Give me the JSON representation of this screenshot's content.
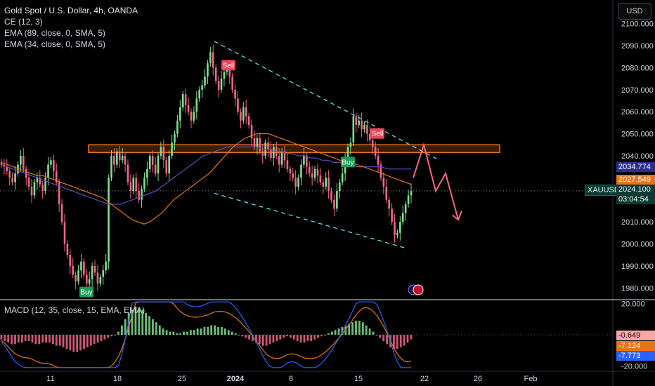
{
  "header": {
    "symbol_title": "Gold Spot / U.S. Dollar, 4h, OANDA",
    "indicators": [
      "CE (12, 3)",
      "EMA (89, close, 0, SMA, 5)",
      "EMA (34, close, 0, SMA, 5)"
    ],
    "currency_button": "USD"
  },
  "macd_legend": "MACD (12, 35, close, 15, EMA, EMA)",
  "price_badges": {
    "ema89": "2034.774",
    "ema34": "2027.549",
    "symbol": "XAUUSD",
    "last_price": "2024.100",
    "countdown": "03:04:54"
  },
  "macd_badges": [
    "-0.649",
    "-7.124",
    "-7.773"
  ],
  "signal_labels": {
    "buy": "Buy",
    "sell": "Sell"
  },
  "chart_data": {
    "type": "candlestick",
    "x_ticks": [
      "11",
      "18",
      "25",
      "2024",
      "8",
      "15",
      "22",
      "26",
      "Feb"
    ],
    "y_ticks": [
      1980,
      1990,
      2000,
      2010,
      2020,
      2030,
      2040,
      2050,
      2060,
      2070,
      2080,
      2090,
      2100
    ],
    "y_range": [
      1975,
      2105
    ],
    "macd_ticks": [
      20,
      -20
    ],
    "macd_range": [
      -22,
      22
    ],
    "last_price": 2024.1,
    "resistance_zone": [
      2041.5,
      2045
    ],
    "channel_upper": [
      [
        2092,
        2090
      ],
      [
        2045,
        2038
      ]
    ],
    "channel_lower": [
      [
        2041,
        2041
      ],
      [
        2002,
        1996
      ]
    ],
    "forecast_path": [
      2030,
      2045,
      2024,
      2032,
      2011
    ],
    "signals": [
      {
        "type": "Buy",
        "price": 1978
      },
      {
        "type": "Sell",
        "price": 2081
      },
      {
        "type": "Sell",
        "price": 2050
      },
      {
        "type": "Buy",
        "price": 2037
      }
    ],
    "closes": [
      2036,
      2035,
      2033,
      2030,
      2028,
      2032,
      2036,
      2040,
      2034,
      2030,
      2026,
      2022,
      2028,
      2030,
      2027,
      2024,
      2030,
      2036,
      2038,
      2033,
      2028,
      2018,
      2010,
      2000,
      1995,
      1990,
      1986,
      1983,
      1988,
      1992,
      1986,
      1982,
      1984,
      1990,
      1987,
      1982,
      1985,
      1988,
      1992,
      2030,
      2040,
      2036,
      2042,
      2038,
      2040,
      2036,
      2028,
      2024,
      2030,
      2024,
      2020,
      2025,
      2030,
      2034,
      2040,
      2036,
      2032,
      2040,
      2044,
      2038,
      2032,
      2040,
      2046,
      2050,
      2056,
      2062,
      2068,
      2063,
      2060,
      2056,
      2060,
      2066,
      2070,
      2072,
      2076,
      2082,
      2087,
      2080,
      2074,
      2070,
      2075,
      2078,
      2080,
      2076,
      2070,
      2066,
      2060,
      2056,
      2062,
      2058,
      2054,
      2048,
      2044,
      2048,
      2042,
      2040,
      2046,
      2043,
      2039,
      2044,
      2040,
      2036,
      2042,
      2038,
      2034,
      2032,
      2030,
      2026,
      2030,
      2036,
      2040,
      2035,
      2032,
      2030,
      2034,
      2031,
      2028,
      2026,
      2030,
      2024,
      2020,
      2016,
      2024,
      2028,
      2032,
      2038,
      2044,
      2046,
      2058,
      2054,
      2056,
      2052,
      2054,
      2050,
      2047,
      2044,
      2040,
      2036,
      2030,
      2026,
      2020,
      2016,
      2010,
      2004,
      2005,
      2010,
      2014,
      2018,
      2022,
      2024
    ],
    "ema34": [
      2037,
      2036,
      2035,
      2034,
      2033,
      2032,
      2031,
      2031,
      2030,
      2029,
      2028,
      2027,
      2026,
      2025,
      2024,
      2023,
      2022,
      2021,
      2019,
      2017,
      2015,
      2013,
      2011,
      2010,
      2009,
      2010,
      2012,
      2014,
      2017,
      2020,
      2022,
      2024,
      2026,
      2028,
      2030,
      2032,
      2035,
      2038,
      2041,
      2044,
      2046,
      2048,
      2049,
      2050,
      2050,
      2050,
      2049,
      2048,
      2047,
      2046,
      2045,
      2044,
      2043,
      2042,
      2041,
      2040,
      2039,
      2038,
      2037,
      2036,
      2035,
      2035,
      2034,
      2033,
      2032,
      2031,
      2030,
      2029,
      2028,
      2027
    ],
    "ema89": [
      2036,
      2035,
      2034,
      2033,
      2032,
      2031,
      2030,
      2029,
      2028,
      2027,
      2026,
      2025,
      2024,
      2023,
      2022,
      2021,
      2020,
      2019,
      2018,
      2018,
      2018,
      2019,
      2020,
      2021,
      2022,
      2023,
      2024,
      2026,
      2028,
      2030,
      2032,
      2034,
      2036,
      2038,
      2040,
      2041,
      2042,
      2043,
      2044,
      2044,
      2044,
      2044,
      2044,
      2044,
      2043,
      2043,
      2042,
      2042,
      2041,
      2041,
      2040,
      2040,
      2039,
      2039,
      2038,
      2038,
      2037,
      2037,
      2036,
      2036,
      2036,
      2035,
      2035,
      2035,
      2035,
      2034,
      2034,
      2034,
      2034,
      2034
    ],
    "macd_hist": [
      -3,
      -4,
      -5,
      -6,
      -6,
      -5,
      -5,
      -4,
      -4,
      -5,
      -6,
      -6,
      -5,
      -5,
      -5,
      -6,
      -7,
      -7,
      -8,
      -9,
      -10,
      -11,
      -11,
      -10,
      -9,
      -8,
      -7,
      -6,
      -5,
      -4,
      -3,
      -2,
      -1,
      0,
      2,
      6,
      10,
      14,
      16,
      18,
      17,
      16,
      14,
      12,
      10,
      8,
      6,
      4,
      3,
      2,
      2,
      1,
      1,
      2,
      2,
      3,
      3,
      4,
      4,
      5,
      5,
      6,
      6,
      5,
      5,
      4,
      3,
      2,
      1,
      0,
      -1,
      -2,
      -3,
      -4,
      -5,
      -6,
      -7,
      -7,
      -6,
      -5,
      -4,
      -3,
      -2,
      -1,
      -2,
      -3,
      -4,
      -5,
      -5,
      -4,
      -4,
      -3,
      -2,
      -1,
      0,
      1,
      2,
      3,
      4,
      5,
      6,
      7,
      8,
      9,
      9,
      8,
      6,
      4,
      2,
      0,
      -2,
      -4,
      -6,
      -8,
      -9,
      -9,
      -8,
      -7,
      -5,
      -3
    ]
  }
}
